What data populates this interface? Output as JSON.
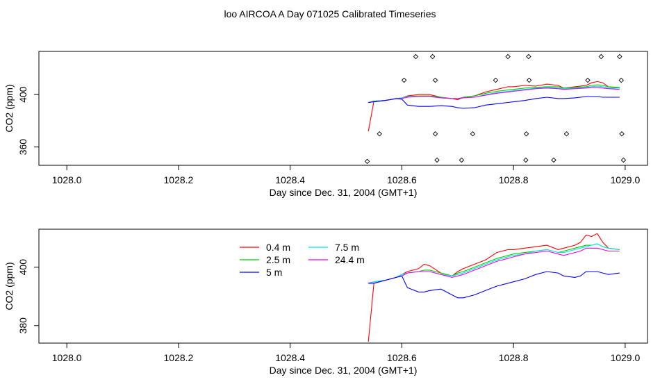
{
  "title": "loo AIRCOA A  Day 071025  Calibrated Timeseries",
  "colors": {
    "0.4 m": "#ff0000",
    "2.5 m": "#00cd00",
    "5 m": "#0000ff",
    "7.5 m": "#00e5ee",
    "24.4 m": "#ee00ee"
  },
  "chart_data": [
    {
      "type": "line",
      "xlabel": "Day since Dec. 31, 2004 (GMT+1)",
      "ylabel": "CO2 (ppm)",
      "xlim": [
        1027.95,
        1029.04
      ],
      "ylim": [
        346,
        433
      ],
      "x_ticks": [
        "1028.0",
        "1028.2",
        "1028.4",
        "1028.6",
        "1028.8",
        "1029.0"
      ],
      "y_ticks": [
        "360",
        "400"
      ],
      "legend": null,
      "x": [
        1028.54,
        1028.55,
        1028.57,
        1028.59,
        1028.6,
        1028.61,
        1028.63,
        1028.65,
        1028.67,
        1028.69,
        1028.7,
        1028.71,
        1028.73,
        1028.75,
        1028.77,
        1028.79,
        1028.8,
        1028.82,
        1028.84,
        1028.86,
        1028.88,
        1028.89,
        1028.91,
        1028.93,
        1028.94,
        1028.95,
        1028.96,
        1028.97,
        1028.99
      ],
      "series": [
        {
          "name": "0.4 m",
          "values": [
            372,
            395,
            395.5,
            397,
            397.5,
            399,
            400,
            400,
            398,
            397,
            396,
            398,
            399,
            402,
            404,
            406,
            406,
            407,
            406.5,
            408,
            407,
            405,
            406,
            407,
            409,
            410,
            409,
            406,
            405
          ]
        },
        {
          "name": "2.5 m",
          "values": [
            394,
            395,
            395.5,
            397,
            397.5,
            398.5,
            399,
            399,
            398,
            397,
            397,
            398,
            399,
            401,
            402.5,
            403.5,
            404,
            405,
            405.5,
            406,
            406,
            405,
            405.5,
            406,
            407,
            407.5,
            407,
            406,
            405.5
          ]
        },
        {
          "name": "5 m",
          "values": [
            394,
            394.5,
            395.5,
            397,
            396.5,
            392,
            391,
            391,
            391.5,
            391,
            390,
            389.5,
            390,
            392,
            393,
            394,
            394.5,
            395.5,
            397,
            398,
            397,
            397,
            397.5,
            398.5,
            398.5,
            398.5,
            398,
            398,
            398
          ]
        },
        {
          "name": "7.5 m",
          "values": [
            394,
            394.5,
            395.5,
            397,
            397.5,
            398.5,
            398.5,
            398.5,
            397.5,
            397,
            397,
            397.5,
            398,
            400,
            401.5,
            402.5,
            403,
            404,
            405,
            405.5,
            405,
            404.5,
            405,
            405.5,
            406,
            406.5,
            406,
            405,
            405
          ]
        },
        {
          "name": "24.4 m",
          "values": [
            394,
            394.5,
            395.5,
            397,
            397,
            398,
            398.5,
            398.5,
            397.5,
            397,
            397,
            397.5,
            398,
            399.5,
            401,
            402,
            402.5,
            403.5,
            404.5,
            405,
            404.5,
            404,
            404.5,
            405,
            405.5,
            405.5,
            405,
            404.5,
            404
          ]
        }
      ],
      "markers": [
        {
          "x": 1028.538,
          "y": 349
        },
        {
          "x": 1028.625,
          "y": 429
        },
        {
          "x": 1028.655,
          "y": 429
        },
        {
          "x": 1028.79,
          "y": 429
        },
        {
          "x": 1028.827,
          "y": 429
        },
        {
          "x": 1028.957,
          "y": 429
        },
        {
          "x": 1028.99,
          "y": 429
        },
        {
          "x": 1028.604,
          "y": 411
        },
        {
          "x": 1028.66,
          "y": 411
        },
        {
          "x": 1028.768,
          "y": 411
        },
        {
          "x": 1028.828,
          "y": 411
        },
        {
          "x": 1028.933,
          "y": 411
        },
        {
          "x": 1028.993,
          "y": 411
        },
        {
          "x": 1028.56,
          "y": 370
        },
        {
          "x": 1028.66,
          "y": 370
        },
        {
          "x": 1028.727,
          "y": 370
        },
        {
          "x": 1028.823,
          "y": 370
        },
        {
          "x": 1028.895,
          "y": 370
        },
        {
          "x": 1028.994,
          "y": 370
        },
        {
          "x": 1028.663,
          "y": 350
        },
        {
          "x": 1028.707,
          "y": 350
        },
        {
          "x": 1028.822,
          "y": 350
        },
        {
          "x": 1028.872,
          "y": 350
        },
        {
          "x": 1028.997,
          "y": 350
        }
      ]
    },
    {
      "type": "line",
      "xlabel": "Day since Dec. 31, 2004 (GMT+1)",
      "ylabel": "CO2 (ppm)",
      "xlim": [
        1027.95,
        1029.04
      ],
      "ylim": [
        374,
        413
      ],
      "x_ticks": [
        "1028.0",
        "1028.2",
        "1028.4",
        "1028.6",
        "1028.8",
        "1029.0"
      ],
      "y_ticks": [
        "380",
        "400"
      ],
      "legend": "top-center",
      "x": [
        1028.54,
        1028.55,
        1028.57,
        1028.59,
        1028.6,
        1028.61,
        1028.63,
        1028.64,
        1028.65,
        1028.67,
        1028.69,
        1028.7,
        1028.71,
        1028.73,
        1028.75,
        1028.77,
        1028.79,
        1028.8,
        1028.82,
        1028.84,
        1028.86,
        1028.88,
        1028.89,
        1028.91,
        1028.92,
        1028.93,
        1028.94,
        1028.95,
        1028.96,
        1028.97,
        1028.99
      ],
      "series": [
        {
          "name": "0.4 m",
          "values": [
            374.5,
            394.5,
            395.5,
            396.5,
            397.5,
            398.5,
            399.5,
            401,
            400.5,
            398,
            397,
            398.5,
            399.5,
            401,
            402.5,
            405,
            406,
            406,
            406.5,
            407,
            407.5,
            406,
            406.5,
            407.5,
            408.5,
            411,
            410.5,
            411.5,
            408.5,
            406.5,
            406
          ]
        },
        {
          "name": "2.5 m",
          "values": [
            394.5,
            395,
            395.5,
            396.5,
            397.5,
            398,
            398.5,
            399,
            399,
            398,
            397,
            398,
            398.5,
            400,
            401.5,
            403,
            404,
            404.5,
            405,
            405.5,
            406,
            405,
            405.5,
            406.5,
            407,
            407.5,
            407.5,
            408,
            407,
            406.5,
            406
          ]
        },
        {
          "name": "5 m",
          "values": [
            394.5,
            394.5,
            395.5,
            396.5,
            397,
            393,
            391.5,
            391.5,
            392,
            392.5,
            390.5,
            389.5,
            389.5,
            390.5,
            392,
            393.5,
            394.5,
            395,
            396,
            397.5,
            398.5,
            398,
            397,
            396.5,
            397,
            398.5,
            398.5,
            398.5,
            398,
            397.5,
            398
          ]
        },
        {
          "name": "7.5 m",
          "values": [
            394.5,
            395,
            395.5,
            396.5,
            397.5,
            398,
            398.5,
            398.5,
            398.5,
            397.5,
            397,
            397.5,
            398,
            399.5,
            401,
            402.5,
            403.5,
            404,
            404.5,
            405.5,
            406,
            405,
            405,
            406,
            406.5,
            407,
            407.5,
            408,
            407,
            406.5,
            406
          ]
        },
        {
          "name": "24.4 m",
          "values": [
            394.5,
            394.5,
            395.5,
            396.5,
            397,
            398,
            398.5,
            398.5,
            398.5,
            397.5,
            396.5,
            397,
            397.5,
            399,
            400.5,
            402,
            403,
            403.5,
            404.5,
            405,
            405.5,
            404.5,
            404,
            405,
            405.5,
            406.5,
            406.5,
            406.5,
            406,
            405.5,
            405.5
          ]
        }
      ]
    }
  ]
}
